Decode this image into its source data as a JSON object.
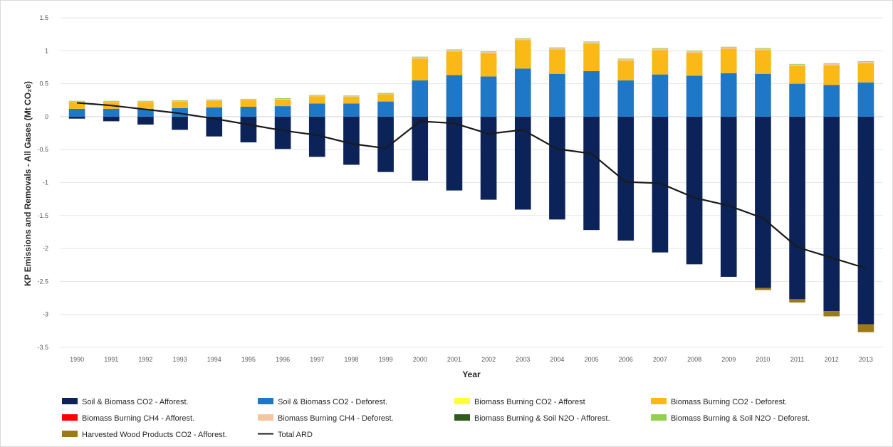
{
  "chart_data": {
    "type": "bar",
    "stacked": true,
    "title": "",
    "xlabel": "Year",
    "ylabel": "KP Emissions and Removals - All Gases (Mt CO₂e)",
    "ylim": [
      -3.5,
      1.5
    ],
    "yticks": [
      -3.5,
      -3,
      -2.5,
      -2,
      -1.5,
      -1,
      -0.5,
      0,
      0.5,
      1,
      1.5
    ],
    "ytick_labels": [
      "-3.5",
      "-3",
      "-2.5",
      "-2",
      "-1.5",
      "-1",
      "-0.5",
      "0",
      "0.5",
      "1",
      "1.5"
    ],
    "grid": true,
    "legend_position": "bottom",
    "categories": [
      "1990",
      "1991",
      "1992",
      "1993",
      "1994",
      "1995",
      "1996",
      "1997",
      "1998",
      "1999",
      "2000",
      "2001",
      "2002",
      "2003",
      "2004",
      "2005",
      "2006",
      "2007",
      "2008",
      "2009",
      "2010",
      "2011",
      "2012",
      "2013"
    ],
    "series": [
      {
        "name": "Soil & Biomass CO2 - Afforest.",
        "color": "#0b2359",
        "values": [
          -0.03,
          -0.07,
          -0.12,
          -0.2,
          -0.3,
          -0.39,
          -0.49,
          -0.61,
          -0.73,
          -0.84,
          -0.97,
          -1.12,
          -1.26,
          -1.41,
          -1.56,
          -1.72,
          -1.88,
          -2.06,
          -2.24,
          -2.43,
          -2.6,
          -2.77,
          -2.95,
          -3.15
        ]
      },
      {
        "name": "Soil & Biomass CO2 - Deforest.",
        "color": "#1f77c8",
        "values": [
          0.12,
          0.12,
          0.12,
          0.13,
          0.14,
          0.15,
          0.16,
          0.2,
          0.2,
          0.23,
          0.55,
          0.63,
          0.61,
          0.73,
          0.65,
          0.69,
          0.55,
          0.64,
          0.62,
          0.66,
          0.65,
          0.5,
          0.48,
          0.52
        ]
      },
      {
        "name": "Biomass Burning CO2 - Afforest",
        "color": "#ffff33",
        "values": [
          0,
          0,
          0,
          0,
          0,
          0,
          0,
          0,
          0,
          0,
          0,
          0,
          0,
          0,
          0,
          0,
          0,
          0,
          0,
          0,
          0,
          0,
          0,
          0
        ]
      },
      {
        "name": "Biomass Burning CO2 - Deforest.",
        "color": "#fbb917",
        "values": [
          0.1,
          0.1,
          0.1,
          0.1,
          0.1,
          0.1,
          0.1,
          0.11,
          0.1,
          0.11,
          0.33,
          0.36,
          0.35,
          0.43,
          0.37,
          0.42,
          0.3,
          0.37,
          0.35,
          0.37,
          0.36,
          0.27,
          0.3,
          0.29
        ]
      },
      {
        "name": "Biomass Burning CH4 - Afforest.",
        "color": "#ff0000",
        "values": [
          0,
          0,
          0,
          0,
          0,
          0,
          0,
          0,
          0,
          0,
          0,
          0,
          0,
          0,
          0,
          0,
          0,
          0,
          0,
          0,
          0,
          0,
          0,
          0
        ]
      },
      {
        "name": "Biomass Burning CH4 - Deforest.",
        "color": "#f4c7a1",
        "values": [
          0.01,
          0.01,
          0.01,
          0.01,
          0.01,
          0.01,
          0.01,
          0.01,
          0.01,
          0.01,
          0.02,
          0.02,
          0.02,
          0.02,
          0.02,
          0.02,
          0.02,
          0.02,
          0.02,
          0.02,
          0.02,
          0.02,
          0.02,
          0.02
        ]
      },
      {
        "name": "Biomass Burning & Soil N2O - Afforest.",
        "color": "#2e5d1e",
        "values": [
          0,
          0,
          0,
          0,
          0,
          0,
          0,
          0,
          0,
          0,
          0,
          0,
          0,
          0,
          0,
          0,
          0,
          0,
          0,
          0,
          0,
          0,
          0,
          0
        ]
      },
      {
        "name": "Biomass Burning & Soil N2O - Deforest.",
        "color": "#92d050",
        "values": [
          0.01,
          0.01,
          0.01,
          0.01,
          0.01,
          0.01,
          0.01,
          0.01,
          0.01,
          0.01,
          0.01,
          0.01,
          0.01,
          0.01,
          0.01,
          0.01,
          0.01,
          0.01,
          0.01,
          0.01,
          0.01,
          0.01,
          0.01,
          0.01
        ]
      },
      {
        "name": "Harvested Wood Products CO2 - Afforest.",
        "color": "#9c7a17",
        "values": [
          0,
          0,
          0,
          0,
          0,
          0,
          0,
          0,
          0,
          0,
          0,
          0,
          0,
          0,
          0,
          0,
          0,
          0,
          0,
          0,
          -0.03,
          -0.05,
          -0.08,
          -0.12
        ]
      }
    ],
    "line_series": {
      "name": "Total ARD",
      "color": "#1a1a1a",
      "values": [
        0.21,
        0.17,
        0.11,
        0.05,
        -0.03,
        -0.12,
        -0.21,
        -0.28,
        -0.41,
        -0.48,
        -0.07,
        -0.1,
        -0.26,
        -0.2,
        -0.49,
        -0.56,
        -0.99,
        -1.01,
        -1.23,
        -1.35,
        -1.54,
        -1.98,
        -2.14,
        -2.3
      ]
    }
  }
}
